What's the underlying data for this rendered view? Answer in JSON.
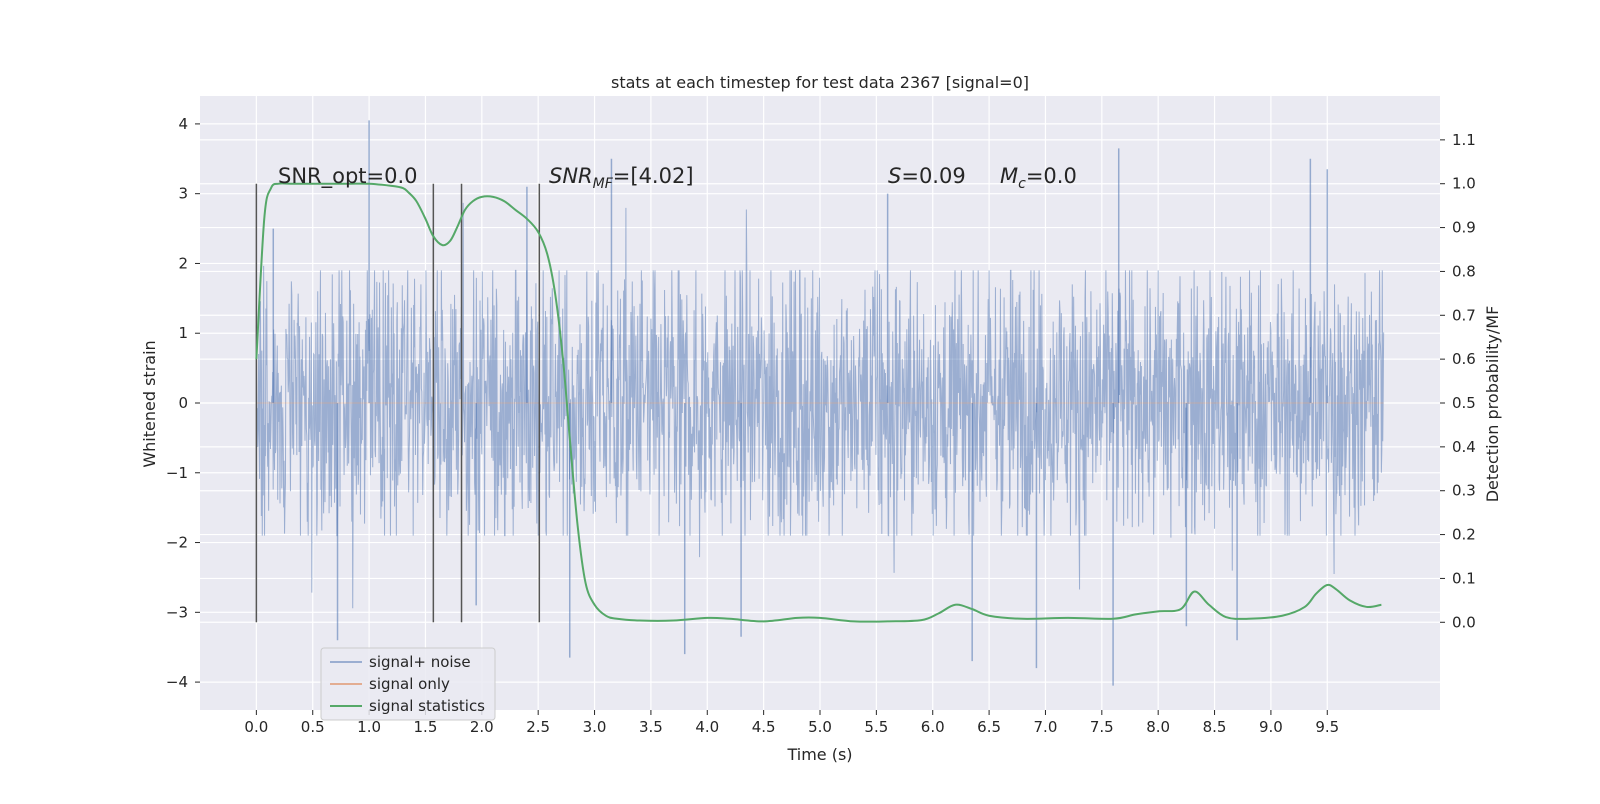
{
  "chart_data": {
    "type": "line",
    "title": "stats at each timestep for test data 2367 [signal=0]",
    "xlabel": "Time (s)",
    "ylabel_left": "Whitened strain",
    "ylabel_right": "Detection probability/MF",
    "xlim": [
      -0.5,
      10.5
    ],
    "ylim_left": [
      -4.4,
      4.4
    ],
    "ylim_right": [
      -0.2,
      1.2
    ],
    "x_ticks": [
      "0.0",
      "0.5",
      "1.0",
      "1.5",
      "2.0",
      "2.5",
      "3.0",
      "3.5",
      "4.0",
      "4.5",
      "5.0",
      "5.5",
      "6.0",
      "6.5",
      "7.0",
      "7.5",
      "8.0",
      "8.5",
      "9.0",
      "9.5"
    ],
    "y_ticks_left": [
      "4",
      "3",
      "2",
      "1",
      "0",
      "−1",
      "−2",
      "−3",
      "−4"
    ],
    "y_ticks_right": [
      "1.1",
      "1.0",
      "0.9",
      "0.8",
      "0.7",
      "0.6",
      "0.5",
      "0.4",
      "0.3",
      "0.2",
      "0.1",
      "0.0"
    ],
    "grid": true,
    "legend_position": "lower-left",
    "colors": {
      "background": "#eaeaf2",
      "grid": "#ffffff",
      "signal_noise": "#4c72b0",
      "signal_only": "#dd8452",
      "signal_statistics": "#55a868",
      "vlines": "#555555"
    },
    "series": [
      {
        "name": "signal+ noise",
        "axis": "left",
        "description_range": {
          "x_start": 0.0,
          "x_end": 10.0,
          "typical_band": [
            -1.9,
            1.9
          ]
        },
        "spikes": [
          {
            "x": 1.0,
            "y": 4.05
          },
          {
            "x": 0.72,
            "y": -3.4
          },
          {
            "x": 2.78,
            "y": -3.65
          },
          {
            "x": 3.15,
            "y": 3.5
          },
          {
            "x": 3.8,
            "y": -3.6
          },
          {
            "x": 6.35,
            "y": -3.7
          },
          {
            "x": 6.92,
            "y": -3.8
          },
          {
            "x": 7.6,
            "y": -4.05
          },
          {
            "x": 7.65,
            "y": 3.65
          },
          {
            "x": 9.35,
            "y": 3.5
          },
          {
            "x": 9.5,
            "y": 3.35
          },
          {
            "x": 8.7,
            "y": -3.4
          },
          {
            "x": 4.3,
            "y": -3.35
          },
          {
            "x": 2.4,
            "y": 3.1
          },
          {
            "x": 0.15,
            "y": 2.5
          },
          {
            "x": 1.95,
            "y": -2.9
          },
          {
            "x": 5.6,
            "y": 3.0
          },
          {
            "x": 8.25,
            "y": -3.2
          }
        ]
      },
      {
        "name": "signal only",
        "axis": "left",
        "x": [
          0.0,
          10.0
        ],
        "y": [
          0.0,
          0.0
        ]
      },
      {
        "name": "signal statistics",
        "axis": "right",
        "x": [
          0.0,
          0.07,
          0.13,
          0.2,
          0.3,
          0.5,
          0.8,
          1.0,
          1.2,
          1.3,
          1.35,
          1.42,
          1.5,
          1.57,
          1.65,
          1.72,
          1.78,
          1.85,
          1.92,
          2.0,
          2.1,
          2.2,
          2.3,
          2.4,
          2.5,
          2.58,
          2.65,
          2.72,
          2.78,
          2.85,
          2.92,
          3.0,
          3.1,
          3.2,
          3.4,
          3.7,
          4.0,
          4.2,
          4.5,
          4.8,
          5.0,
          5.3,
          5.6,
          5.9,
          6.05,
          6.2,
          6.35,
          6.5,
          6.8,
          7.2,
          7.6,
          7.8,
          8.0,
          8.2,
          8.32,
          8.45,
          8.6,
          8.8,
          9.1,
          9.3,
          9.4,
          9.5,
          9.58,
          9.7,
          9.85,
          9.98
        ],
        "y": [
          0.6,
          0.92,
          0.99,
          1.0,
          1.0,
          1.0,
          1.0,
          1.0,
          0.995,
          0.99,
          0.98,
          0.96,
          0.92,
          0.88,
          0.86,
          0.87,
          0.9,
          0.94,
          0.96,
          0.97,
          0.97,
          0.96,
          0.94,
          0.92,
          0.89,
          0.84,
          0.75,
          0.6,
          0.42,
          0.22,
          0.09,
          0.04,
          0.015,
          0.008,
          0.004,
          0.004,
          0.01,
          0.008,
          0.002,
          0.01,
          0.01,
          0.002,
          0.002,
          0.005,
          0.02,
          0.04,
          0.03,
          0.015,
          0.008,
          0.01,
          0.008,
          0.018,
          0.025,
          0.03,
          0.07,
          0.04,
          0.012,
          0.008,
          0.015,
          0.035,
          0.065,
          0.085,
          0.075,
          0.05,
          0.035,
          0.04
        ]
      }
    ],
    "vertical_lines": [
      0.0,
      1.57,
      1.82,
      2.51
    ],
    "annotations": {
      "snr_opt": "SNR_opt=0.0",
      "snr_mf_main": "SNR",
      "snr_mf_sub": "MF",
      "snr_mf_value": "=[4.02]",
      "s_symbol": "S",
      "s_value": "=0.09",
      "mc_main": "M",
      "mc_sub": "c",
      "mc_value": "=0.0"
    }
  }
}
